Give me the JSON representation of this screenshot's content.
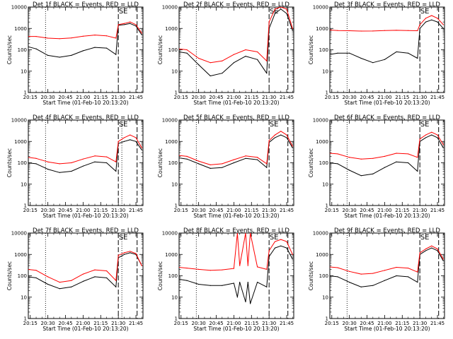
{
  "figure": {
    "ylabel": "Counts/sec",
    "xlabel": "Start Time (01-Feb-10 20:13:20)",
    "xticks": [
      "20:15",
      "20:30",
      "20:45",
      "21:00",
      "21:15",
      "21:30",
      "21:45"
    ],
    "yticks": [
      "1",
      "10",
      "100",
      "1000",
      "10000"
    ],
    "marker_label": "SE",
    "colors": {
      "events": "#000000",
      "lld": "#ff0000",
      "background": "#ffffff"
    }
  },
  "chart_data": [
    {
      "type": "line",
      "title": "Det 1f BLACK = Events, RED = LLD",
      "xlim": [
        "20:13:20",
        "21:51:00"
      ],
      "ylim": [
        1,
        10000
      ],
      "yscale": "log",
      "dotted_vlines": [
        "20:28"
      ],
      "dashed_vlines": [
        "21:30",
        "21:46"
      ],
      "series": [
        {
          "name": "Events",
          "color": "#000000",
          "x": [
            "20:13",
            "20:20",
            "20:30",
            "20:40",
            "20:50",
            "21:00",
            "21:10",
            "21:20",
            "21:28",
            "21:30",
            "21:35",
            "21:40",
            "21:45",
            "21:50"
          ],
          "values": [
            140,
            110,
            55,
            45,
            55,
            90,
            130,
            120,
            60,
            1400,
            1500,
            1700,
            1300,
            500
          ]
        },
        {
          "name": "LLD",
          "color": "#ff0000",
          "x": [
            "20:13",
            "20:20",
            "20:30",
            "20:40",
            "20:50",
            "21:00",
            "21:10",
            "21:20",
            "21:28",
            "21:30",
            "21:35",
            "21:40",
            "21:45",
            "21:50"
          ],
          "values": [
            420,
            420,
            350,
            330,
            360,
            430,
            490,
            450,
            350,
            1500,
            1700,
            2000,
            1500,
            600
          ]
        }
      ]
    },
    {
      "type": "line",
      "title": "Det 2f BLACK = Events, RED = LLD",
      "xlim": [
        "20:13:20",
        "21:51:00"
      ],
      "ylim": [
        1,
        10000
      ],
      "yscale": "log",
      "dotted_vlines": [
        "20:28"
      ],
      "dashed_vlines": [
        "21:30",
        "21:46"
      ],
      "series": [
        {
          "name": "Events",
          "color": "#000000",
          "x": [
            "20:13",
            "20:20",
            "20:30",
            "20:40",
            "20:50",
            "21:00",
            "21:10",
            "21:20",
            "21:28",
            "21:30",
            "21:35",
            "21:40",
            "21:45",
            "21:50"
          ],
          "values": [
            80,
            70,
            20,
            6,
            8,
            25,
            50,
            35,
            8,
            1000,
            5000,
            8000,
            5000,
            800
          ]
        },
        {
          "name": "LLD",
          "color": "#ff0000",
          "x": [
            "20:13",
            "20:20",
            "20:30",
            "20:40",
            "20:50",
            "21:00",
            "21:10",
            "21:20",
            "21:28",
            "21:30",
            "21:35",
            "21:40",
            "21:45",
            "21:50"
          ],
          "values": [
            110,
            100,
            40,
            25,
            30,
            60,
            100,
            80,
            30,
            2000,
            8000,
            10000,
            8000,
            1000
          ]
        }
      ]
    },
    {
      "type": "line",
      "title": "Det 3f BLACK = Events, RED = LLD",
      "xlim": [
        "20:13:20",
        "21:51:00"
      ],
      "ylim": [
        1,
        10000
      ],
      "yscale": "log",
      "dotted_vlines": [
        "20:28"
      ],
      "dashed_vlines": [
        "21:30",
        "21:46"
      ],
      "series": [
        {
          "name": "Events",
          "color": "#000000",
          "x": [
            "20:13",
            "20:20",
            "20:30",
            "20:40",
            "20:50",
            "21:00",
            "21:10",
            "21:20",
            "21:28",
            "21:30",
            "21:35",
            "21:40",
            "21:45",
            "21:50"
          ],
          "values": [
            60,
            70,
            70,
            40,
            25,
            35,
            80,
            70,
            40,
            1000,
            2000,
            2500,
            2000,
            1000
          ]
        },
        {
          "name": "LLD",
          "color": "#ff0000",
          "x": [
            "20:13",
            "20:20",
            "20:30",
            "20:40",
            "20:50",
            "21:00",
            "21:10",
            "21:20",
            "21:28",
            "21:30",
            "21:35",
            "21:40",
            "21:45",
            "21:50"
          ],
          "values": [
            850,
            800,
            780,
            750,
            760,
            800,
            820,
            800,
            780,
            1500,
            3000,
            4000,
            3000,
            1500
          ]
        }
      ]
    },
    {
      "type": "line",
      "title": "Det 4f BLACK = Events, RED = LLD",
      "xlim": [
        "20:13:20",
        "21:51:00"
      ],
      "ylim": [
        1,
        10000
      ],
      "yscale": "log",
      "dotted_vlines": [
        "20:28",
        "21:33"
      ],
      "dashed_vlines": [
        "21:30",
        "21:46"
      ],
      "series": [
        {
          "name": "Events",
          "color": "#000000",
          "x": [
            "20:13",
            "20:20",
            "20:30",
            "20:40",
            "20:50",
            "21:00",
            "21:10",
            "21:20",
            "21:28",
            "21:30",
            "21:35",
            "21:40",
            "21:45",
            "21:50"
          ],
          "values": [
            100,
            90,
            50,
            35,
            40,
            70,
            110,
            100,
            40,
            800,
            1000,
            1200,
            1000,
            400
          ]
        },
        {
          "name": "LLD",
          "color": "#ff0000",
          "x": [
            "20:13",
            "20:20",
            "20:30",
            "20:40",
            "20:50",
            "21:00",
            "21:10",
            "21:20",
            "21:28",
            "21:30",
            "21:35",
            "21:40",
            "21:45",
            "21:50"
          ],
          "values": [
            180,
            160,
            110,
            90,
            100,
            150,
            210,
            190,
            110,
            1000,
            1500,
            2000,
            1500,
            500
          ]
        }
      ]
    },
    {
      "type": "line",
      "title": "Det 5f BLACK = Events, RED = LLD",
      "xlim": [
        "20:13:20",
        "21:51:00"
      ],
      "ylim": [
        1,
        10000
      ],
      "yscale": "log",
      "dotted_vlines": [
        "20:28"
      ],
      "dashed_vlines": [
        "21:30",
        "21:46"
      ],
      "series": [
        {
          "name": "Events",
          "color": "#000000",
          "x": [
            "20:13",
            "20:20",
            "20:30",
            "20:40",
            "20:50",
            "21:00",
            "21:10",
            "21:20",
            "21:28",
            "21:30",
            "21:35",
            "21:40",
            "21:45",
            "21:50"
          ],
          "values": [
            170,
            150,
            90,
            55,
            60,
            100,
            160,
            140,
            60,
            900,
            1500,
            2000,
            1500,
            500
          ]
        },
        {
          "name": "LLD",
          "color": "#ff0000",
          "x": [
            "20:13",
            "20:20",
            "20:30",
            "20:40",
            "20:50",
            "21:00",
            "21:10",
            "21:20",
            "21:28",
            "21:30",
            "21:35",
            "21:40",
            "21:45",
            "21:50"
          ],
          "values": [
            220,
            200,
            120,
            80,
            90,
            140,
            210,
            180,
            90,
            1100,
            2000,
            3000,
            2000,
            600
          ]
        }
      ]
    },
    {
      "type": "line",
      "title": "Det 6f BLACK = Events, RED = LLD",
      "xlim": [
        "20:13:20",
        "21:51:00"
      ],
      "ylim": [
        1,
        10000
      ],
      "yscale": "log",
      "dotted_vlines": [
        "20:28"
      ],
      "dashed_vlines": [
        "21:30",
        "21:46"
      ],
      "series": [
        {
          "name": "Events",
          "color": "#000000",
          "x": [
            "20:13",
            "20:20",
            "20:30",
            "20:40",
            "20:50",
            "21:00",
            "21:10",
            "21:20",
            "21:28",
            "21:30",
            "21:35",
            "21:40",
            "21:45",
            "21:50"
          ],
          "values": [
            100,
            90,
            45,
            25,
            30,
            60,
            110,
            100,
            40,
            1000,
            1500,
            2000,
            1500,
            500
          ]
        },
        {
          "name": "LLD",
          "color": "#ff0000",
          "x": [
            "20:13",
            "20:20",
            "20:30",
            "20:40",
            "20:50",
            "21:00",
            "21:10",
            "21:20",
            "21:28",
            "21:30",
            "21:35",
            "21:40",
            "21:45",
            "21:50"
          ],
          "values": [
            280,
            260,
            180,
            150,
            160,
            200,
            280,
            260,
            180,
            1300,
            2000,
            2700,
            2000,
            700
          ]
        }
      ]
    },
    {
      "type": "line",
      "title": "Det 7f BLACK = Events, RED = LLD",
      "xlim": [
        "20:13:20",
        "21:51:00"
      ],
      "ylim": [
        1,
        10000
      ],
      "yscale": "log",
      "dotted_vlines": [
        "20:28",
        "21:33"
      ],
      "dashed_vlines": [
        "21:30",
        "21:46"
      ],
      "series": [
        {
          "name": "Events",
          "color": "#000000",
          "x": [
            "20:13",
            "20:20",
            "20:30",
            "20:40",
            "20:50",
            "21:00",
            "21:10",
            "21:20",
            "21:28",
            "21:30",
            "21:35",
            "21:40",
            "21:45",
            "21:50"
          ],
          "values": [
            90,
            80,
            40,
            25,
            30,
            55,
            90,
            80,
            30,
            700,
            1000,
            1200,
            1000,
            300
          ]
        },
        {
          "name": "LLD",
          "color": "#ff0000",
          "x": [
            "20:13",
            "20:20",
            "20:30",
            "20:40",
            "20:50",
            "21:00",
            "21:10",
            "21:20",
            "21:28",
            "21:30",
            "21:35",
            "21:40",
            "21:45",
            "21:50"
          ],
          "values": [
            200,
            180,
            90,
            50,
            60,
            120,
            190,
            170,
            60,
            900,
            1200,
            1400,
            1100,
            300
          ]
        }
      ]
    },
    {
      "type": "line",
      "title": "Det 8f BLACK = Events, RED = LLD",
      "xlim": [
        "20:13:20",
        "21:51:00"
      ],
      "ylim": [
        1,
        10000
      ],
      "yscale": "log",
      "dotted_vlines": [
        "20:28"
      ],
      "dashed_vlines": [
        "21:30",
        "21:46"
      ],
      "series": [
        {
          "name": "Events",
          "color": "#000000",
          "x": [
            "20:13",
            "20:20",
            "20:30",
            "20:40",
            "20:50",
            "21:00",
            "21:03",
            "21:05",
            "21:10",
            "21:12",
            "21:14",
            "21:20",
            "21:28",
            "21:30",
            "21:35",
            "21:40",
            "21:45",
            "21:50"
          ],
          "values": [
            70,
            60,
            40,
            35,
            35,
            45,
            10,
            50,
            6,
            50,
            5,
            50,
            30,
            800,
            2000,
            2500,
            2000,
            600
          ]
        },
        {
          "name": "LLD",
          "color": "#ff0000",
          "x": [
            "20:13",
            "20:20",
            "20:30",
            "20:40",
            "20:50",
            "21:00",
            "21:03",
            "21:05",
            "21:10",
            "21:12",
            "21:14",
            "21:20",
            "21:28",
            "21:30",
            "21:35",
            "21:40",
            "21:45",
            "21:50"
          ],
          "values": [
            250,
            230,
            200,
            180,
            190,
            220,
            10000,
            300,
            10000,
            300,
            10000,
            260,
            200,
            1500,
            4000,
            5000,
            4000,
            1000
          ]
        }
      ]
    },
    {
      "type": "line",
      "title": "Det 9f BLACK = Events, RED = LLD",
      "xlim": [
        "20:13:20",
        "21:51:00"
      ],
      "ylim": [
        1,
        10000
      ],
      "yscale": "log",
      "dotted_vlines": [
        "20:28"
      ],
      "dashed_vlines": [
        "21:30",
        "21:46"
      ],
      "series": [
        {
          "name": "Events",
          "color": "#000000",
          "x": [
            "20:13",
            "20:20",
            "20:30",
            "20:40",
            "20:50",
            "21:00",
            "21:10",
            "21:20",
            "21:28",
            "21:30",
            "21:35",
            "21:40",
            "21:45",
            "21:50"
          ],
          "values": [
            100,
            90,
            50,
            30,
            35,
            60,
            100,
            90,
            50,
            1000,
            1500,
            2000,
            1500,
            500
          ]
        },
        {
          "name": "LLD",
          "color": "#ff0000",
          "x": [
            "20:13",
            "20:20",
            "20:30",
            "20:40",
            "20:50",
            "21:00",
            "21:10",
            "21:20",
            "21:28",
            "21:30",
            "21:35",
            "21:40",
            "21:45",
            "21:50"
          ],
          "values": [
            260,
            240,
            160,
            120,
            130,
            180,
            250,
            230,
            150,
            1200,
            1800,
            2500,
            1800,
            600
          ]
        }
      ]
    }
  ]
}
